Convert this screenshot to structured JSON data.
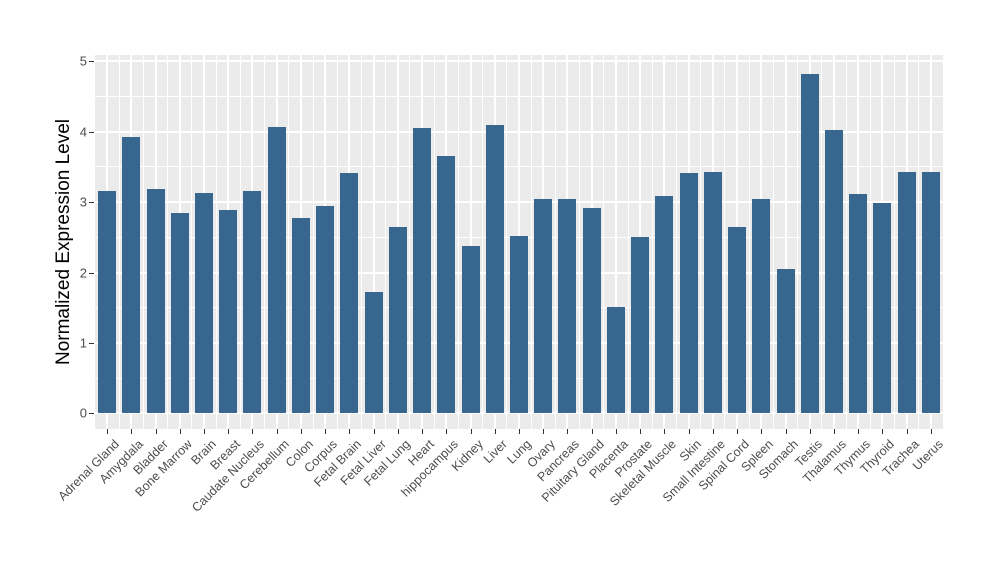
{
  "chart_data": {
    "type": "bar",
    "title": "",
    "xlabel": "",
    "ylabel": "Normalized Expression Level",
    "categories": [
      "Adrenal Gland",
      "Amygdala",
      "Bladder",
      "Bone Marrow",
      "Brain",
      "Breast",
      "Caudate Nucleus",
      "Cerebellum",
      "Colon",
      "Corpus",
      "Fetal Brain",
      "Fetal Liver",
      "Fetal Lung",
      "Heart",
      "hippocampus",
      "Kidney",
      "Liver",
      "Lung",
      "Ovary",
      "Pancreas",
      "Pituitary Gland",
      "Placenta",
      "Prostate",
      "Skeletal Muscle",
      "Skin",
      "Small Intestine",
      "Spinal Cord",
      "Spleen",
      "Stomach",
      "Testis",
      "Thalamus",
      "Thymus",
      "Thyroid",
      "Trachea",
      "Uterus"
    ],
    "values": [
      3.16,
      3.92,
      3.18,
      2.85,
      3.13,
      2.89,
      3.16,
      4.07,
      2.77,
      2.94,
      3.42,
      1.72,
      2.64,
      4.05,
      3.66,
      2.38,
      4.1,
      2.52,
      3.05,
      3.05,
      2.92,
      1.51,
      2.51,
      3.08,
      3.42,
      3.43,
      2.64,
      3.05,
      2.05,
      4.82,
      4.03,
      3.11,
      2.99,
      3.43,
      3.43
    ],
    "ylim": [
      0,
      5
    ],
    "yticks": [
      0,
      1,
      2,
      3,
      4,
      5
    ],
    "grid": "on",
    "legend": "none",
    "bar_color": "#37678F",
    "panel_bg": "#EBEBEB",
    "grid_major_color": "#FFFFFF",
    "grid_minor_color": "#FFFFFF",
    "tick_label_color": "#4D4D4D",
    "axis_title_color": "#000000"
  }
}
